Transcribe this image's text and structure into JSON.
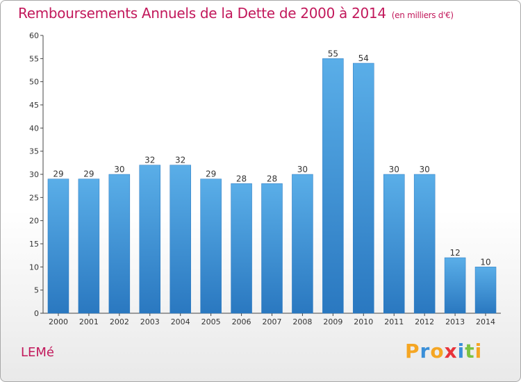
{
  "chart_data": {
    "type": "bar",
    "title": "Remboursements Annuels de la Dette de 2000 à 2014",
    "unit_label": "(en milliers d'€)",
    "categories": [
      "2000",
      "2001",
      "2002",
      "2003",
      "2004",
      "2005",
      "2006",
      "2007",
      "2008",
      "2009",
      "2010",
      "2011",
      "2012",
      "2013",
      "2014"
    ],
    "values": [
      29,
      29,
      30,
      32,
      32,
      29,
      28,
      28,
      30,
      55,
      54,
      30,
      30,
      12,
      10
    ],
    "ylim": [
      0,
      60
    ],
    "yticks": [
      0,
      5,
      10,
      15,
      20,
      25,
      30,
      35,
      40,
      45,
      50,
      55,
      60
    ],
    "grid": false,
    "bar_color_top": "#5aaee8",
    "bar_color_bottom": "#2a78c0"
  },
  "footer": {
    "location": "LEMé",
    "brand": "Proxiti"
  },
  "colors": {
    "title": "#c2185b",
    "brand_letters": [
      "#f5a623",
      "#3a8fd8",
      "#f5a623",
      "#e8333a",
      "#3a8fd8",
      "#7cc242",
      "#f5a623"
    ]
  }
}
